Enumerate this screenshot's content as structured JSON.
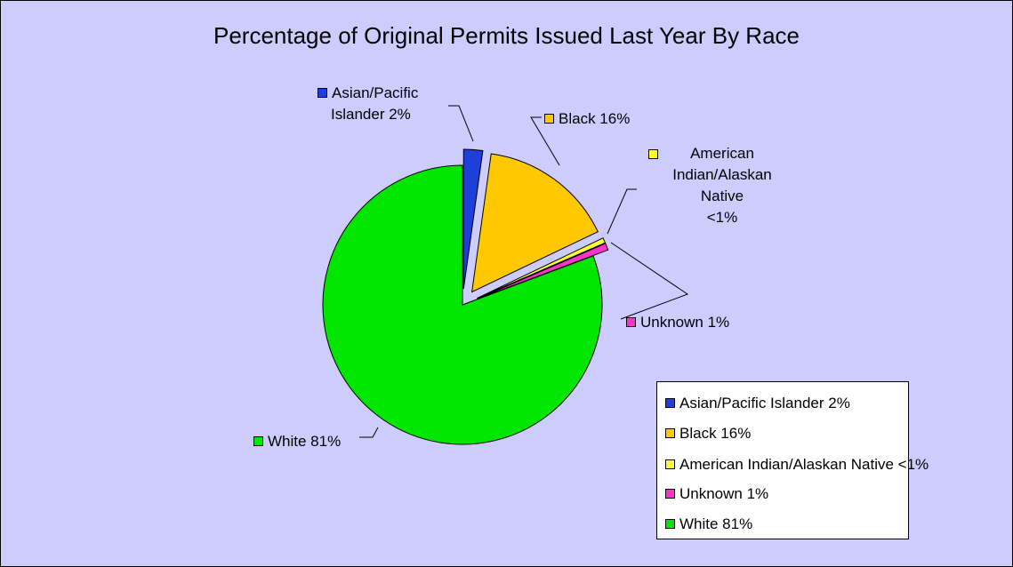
{
  "chart_data": {
    "type": "pie",
    "title": "Percentage of Original Permits Issued Last Year By Race",
    "slices": [
      {
        "name": "Asian/Pacific Islander",
        "value": 2.2,
        "label_text": "2%",
        "color": "#1f3fd9",
        "exploded": true
      },
      {
        "name": "Black",
        "value": 15.7,
        "label_text": "16%",
        "color": "#ffc800",
        "exploded": true
      },
      {
        "name": "American Indian/Alaskan Native",
        "value": 0.6,
        "label_text": "<1%",
        "color": "#ffff33",
        "exploded": true
      },
      {
        "name": "Unknown",
        "value": 0.8,
        "label_text": "1%",
        "color": "#ff33cc",
        "exploded": true
      },
      {
        "name": "White",
        "value": 80.7,
        "label_text": "81%",
        "color": "#00e600",
        "exploded": false
      }
    ],
    "data_labels": {
      "asian": [
        "Asian/Pacific",
        "Islander 2%"
      ],
      "black": "Black 16%",
      "american_indian": [
        "American",
        "Indian/Alaskan",
        "Native",
        "<1%"
      ],
      "unknown": "Unknown 1%",
      "white": "White 81%"
    },
    "legend": {
      "placement": "bottom-right",
      "entries": [
        "Asian/Pacific Islander 2%",
        "Black 16%",
        "American Indian/Alaskan Native <1%",
        "Unknown 1%",
        "White 81%"
      ]
    },
    "colors": {
      "plot_background": "#ccccff",
      "legend_background": "#ffffff",
      "outline": "#000000"
    }
  }
}
